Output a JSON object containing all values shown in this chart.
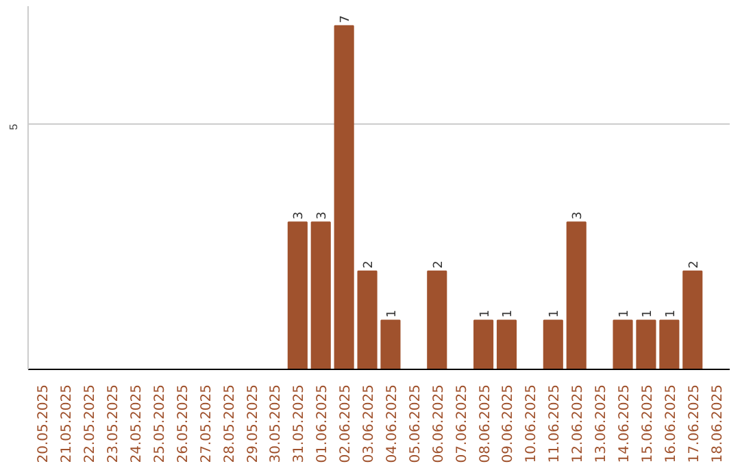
{
  "chart_data": {
    "type": "bar",
    "categories": [
      "20.05.2025",
      "21.05.2025",
      "22.05.2025",
      "23.05.2025",
      "24.05.2025",
      "25.05.2025",
      "26.05.2025",
      "27.05.2025",
      "28.05.2025",
      "29.05.2025",
      "30.05.2025",
      "31.05.2025",
      "01.06.2025",
      "02.06.2025",
      "03.06.2025",
      "04.06.2025",
      "05.06.2025",
      "06.06.2025",
      "07.06.2025",
      "08.06.2025",
      "09.06.2025",
      "10.06.2025",
      "11.06.2025",
      "12.06.2025",
      "13.06.2025",
      "14.06.2025",
      "15.06.2025",
      "16.06.2025",
      "17.06.2025",
      "18.06.2025"
    ],
    "values": [
      0,
      0,
      0,
      0,
      0,
      0,
      0,
      0,
      0,
      0,
      0,
      3,
      3,
      7,
      2,
      1,
      0,
      2,
      0,
      1,
      1,
      0,
      1,
      3,
      0,
      1,
      1,
      1,
      2,
      0
    ],
    "value_labels": [
      null,
      null,
      null,
      null,
      null,
      null,
      null,
      null,
      null,
      null,
      null,
      "3",
      "3",
      "7",
      "2",
      "1",
      null,
      "2",
      null,
      "1",
      "1",
      null,
      "1",
      "3",
      null,
      "1",
      "1",
      "1",
      "2",
      null
    ],
    "color": "#a0522d",
    "ylim": [
      0,
      7.4
    ],
    "yticks": [
      5
    ],
    "grid": "y"
  }
}
